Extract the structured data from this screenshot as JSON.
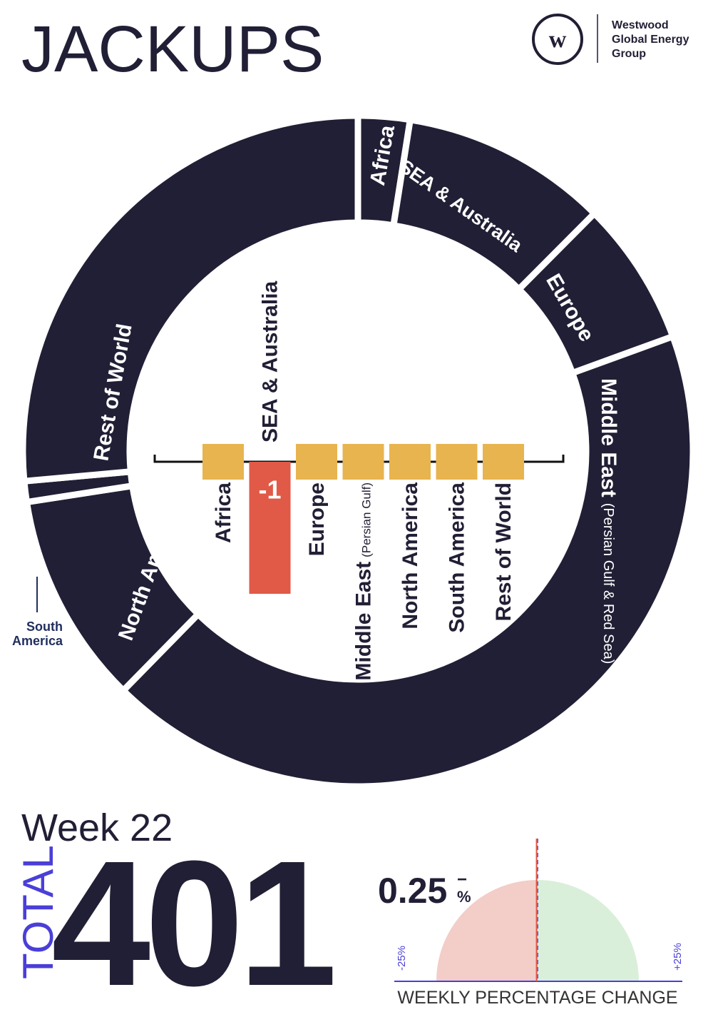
{
  "header": {
    "title": "JACKUPS",
    "brand": [
      "Westwood",
      "Global Energy",
      "Group"
    ]
  },
  "chart_data": [
    {
      "type": "donut",
      "categories": [
        "Africa",
        "SEA & Australia",
        "Europe",
        "Middle East",
        "North America",
        "South America",
        "Rest of World"
      ],
      "values": [
        10,
        40,
        28,
        172,
        41,
        4,
        106
      ],
      "color": "#211f35",
      "notes": {
        "3": "(Persian Gulf & Red Sea)"
      }
    },
    {
      "type": "bar",
      "categories": [
        "Africa",
        "SEA & Australia",
        "Europe",
        "Middle East",
        "North America",
        "South America",
        "Rest of World"
      ],
      "values": [
        0,
        -1,
        0,
        0,
        0,
        0,
        0
      ],
      "color": "#e8b44f",
      "negative_color": "#e05a47",
      "ylim": [
        -1,
        0
      ],
      "notes": {
        "3": "(Persian Gulf)"
      }
    },
    {
      "type": "gauge",
      "value": -0.25,
      "value_label": "0.25",
      "sign_label": "−",
      "unit": "%",
      "xlim": [
        -25,
        25
      ],
      "xticks": [
        {
          "value": -25,
          "label": "-25%"
        },
        {
          "value": 25,
          "label": "+25%"
        }
      ],
      "xlabel": "WEEKLY PERCENTAGE CHANGE",
      "negative_color": "#f3cdc7",
      "positive_color": "#d9efd9"
    }
  ],
  "summary": {
    "week": "Week 22",
    "total_label": "TOTAL",
    "total": 401
  }
}
